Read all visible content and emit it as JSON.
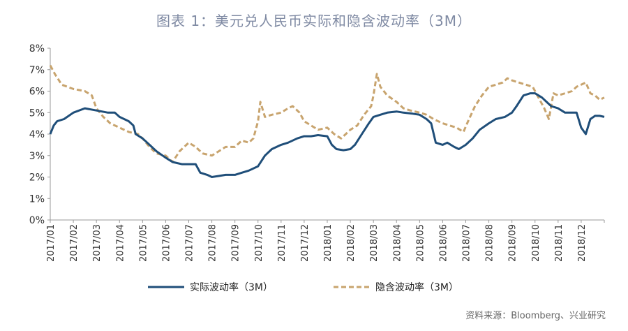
{
  "title": "图表 1：美元兑人民币实际和隐含波动率（3M）",
  "source": "资料来源：Bloomberg、兴业研究",
  "colors": {
    "actual": "#1f4e79",
    "implied": "#c8a46e",
    "axis": "#999999"
  },
  "chart_data": {
    "type": "line",
    "title": "图表 1：美元兑人民币实际和隐含波动率（3M）",
    "xlabel": "",
    "ylabel": "",
    "ylim": [
      0,
      8
    ],
    "y_ticks": [
      "0%",
      "1%",
      "2%",
      "3%",
      "4%",
      "5%",
      "6%",
      "7%",
      "8%"
    ],
    "x_categories": [
      "2017/01",
      "2017/02",
      "2017/03",
      "2017/04",
      "2017/05",
      "2017/06",
      "2017/07",
      "2017/08",
      "2017/09",
      "2017/10",
      "2017/11",
      "2017/12",
      "2018/01",
      "2018/02",
      "2018/03",
      "2018/04",
      "2018/05",
      "2018/06",
      "2018/07",
      "2018/08",
      "2018/09",
      "2018/10",
      "2018/11",
      "2018/12"
    ],
    "x_range": [
      0,
      24
    ],
    "grid": false,
    "legend": "bottom",
    "series": [
      {
        "name": "实际波动率（3M）",
        "style": "solid",
        "points": [
          [
            0,
            4.0
          ],
          [
            0.15,
            4.4
          ],
          [
            0.3,
            4.6
          ],
          [
            0.6,
            4.7
          ],
          [
            1.0,
            5.0
          ],
          [
            1.5,
            5.2
          ],
          [
            2.0,
            5.1
          ],
          [
            2.5,
            5.0
          ],
          [
            2.8,
            5.0
          ],
          [
            3.0,
            4.8
          ],
          [
            3.4,
            4.6
          ],
          [
            3.6,
            4.4
          ],
          [
            3.7,
            4.0
          ],
          [
            4.0,
            3.8
          ],
          [
            4.3,
            3.5
          ],
          [
            4.6,
            3.2
          ],
          [
            5.0,
            2.9
          ],
          [
            5.3,
            2.7
          ],
          [
            5.7,
            2.6
          ],
          [
            6.0,
            2.6
          ],
          [
            6.3,
            2.6
          ],
          [
            6.5,
            2.2
          ],
          [
            6.8,
            2.1
          ],
          [
            7.0,
            2.0
          ],
          [
            7.3,
            2.05
          ],
          [
            7.6,
            2.1
          ],
          [
            8.0,
            2.1
          ],
          [
            8.3,
            2.2
          ],
          [
            8.6,
            2.3
          ],
          [
            9.0,
            2.5
          ],
          [
            9.3,
            3.0
          ],
          [
            9.6,
            3.3
          ],
          [
            10.0,
            3.5
          ],
          [
            10.3,
            3.6
          ],
          [
            10.7,
            3.8
          ],
          [
            11.0,
            3.9
          ],
          [
            11.3,
            3.9
          ],
          [
            11.6,
            3.95
          ],
          [
            12.0,
            3.9
          ],
          [
            12.2,
            3.5
          ],
          [
            12.4,
            3.3
          ],
          [
            12.7,
            3.25
          ],
          [
            13.0,
            3.3
          ],
          [
            13.2,
            3.5
          ],
          [
            13.5,
            4.0
          ],
          [
            13.8,
            4.5
          ],
          [
            14.0,
            4.8
          ],
          [
            14.3,
            4.9
          ],
          [
            14.6,
            5.0
          ],
          [
            15.0,
            5.05
          ],
          [
            15.3,
            5.0
          ],
          [
            15.7,
            4.95
          ],
          [
            16.0,
            4.9
          ],
          [
            16.3,
            4.7
          ],
          [
            16.5,
            4.5
          ],
          [
            16.7,
            3.6
          ],
          [
            17.0,
            3.5
          ],
          [
            17.2,
            3.6
          ],
          [
            17.5,
            3.4
          ],
          [
            17.7,
            3.3
          ],
          [
            18.0,
            3.5
          ],
          [
            18.3,
            3.8
          ],
          [
            18.6,
            4.2
          ],
          [
            19.0,
            4.5
          ],
          [
            19.3,
            4.7
          ],
          [
            19.7,
            4.8
          ],
          [
            20.0,
            5.0
          ],
          [
            20.2,
            5.3
          ],
          [
            20.5,
            5.8
          ],
          [
            20.8,
            5.9
          ],
          [
            21.0,
            5.9
          ],
          [
            21.3,
            5.7
          ],
          [
            21.5,
            5.5
          ],
          [
            21.7,
            5.3
          ],
          [
            22.0,
            5.2
          ],
          [
            22.3,
            5.0
          ],
          [
            22.6,
            5.0
          ],
          [
            22.8,
            5.0
          ],
          [
            23.0,
            4.3
          ],
          [
            23.2,
            4.0
          ],
          [
            23.4,
            4.7
          ],
          [
            23.6,
            4.85
          ],
          [
            23.8,
            4.85
          ],
          [
            24.0,
            4.8
          ]
        ]
      },
      {
        "name": "隐含波动率（3M）",
        "style": "dashed",
        "points": [
          [
            0,
            7.2
          ],
          [
            0.2,
            6.8
          ],
          [
            0.5,
            6.3
          ],
          [
            1.0,
            6.1
          ],
          [
            1.5,
            6.0
          ],
          [
            1.8,
            5.8
          ],
          [
            2.0,
            5.2
          ],
          [
            2.3,
            4.8
          ],
          [
            2.6,
            4.5
          ],
          [
            3.0,
            4.3
          ],
          [
            3.4,
            4.1
          ],
          [
            3.8,
            4.0
          ],
          [
            4.0,
            3.8
          ],
          [
            4.3,
            3.4
          ],
          [
            4.6,
            3.1
          ],
          [
            5.0,
            3.0
          ],
          [
            5.3,
            2.7
          ],
          [
            5.6,
            3.2
          ],
          [
            6.0,
            3.6
          ],
          [
            6.3,
            3.4
          ],
          [
            6.6,
            3.1
          ],
          [
            7.0,
            3.0
          ],
          [
            7.3,
            3.2
          ],
          [
            7.6,
            3.4
          ],
          [
            8.0,
            3.4
          ],
          [
            8.3,
            3.7
          ],
          [
            8.6,
            3.6
          ],
          [
            8.8,
            3.8
          ],
          [
            9.0,
            4.6
          ],
          [
            9.1,
            5.5
          ],
          [
            9.3,
            4.8
          ],
          [
            9.6,
            4.9
          ],
          [
            10.0,
            5.0
          ],
          [
            10.3,
            5.2
          ],
          [
            10.5,
            5.3
          ],
          [
            10.8,
            5.0
          ],
          [
            11.0,
            4.6
          ],
          [
            11.3,
            4.4
          ],
          [
            11.6,
            4.2
          ],
          [
            12.0,
            4.3
          ],
          [
            12.3,
            4.0
          ],
          [
            12.6,
            3.8
          ],
          [
            13.0,
            4.2
          ],
          [
            13.3,
            4.4
          ],
          [
            13.6,
            4.9
          ],
          [
            13.9,
            5.3
          ],
          [
            14.0,
            5.8
          ],
          [
            14.15,
            6.8
          ],
          [
            14.3,
            6.2
          ],
          [
            14.6,
            5.8
          ],
          [
            15.0,
            5.5
          ],
          [
            15.3,
            5.2
          ],
          [
            15.6,
            5.1
          ],
          [
            16.0,
            5.0
          ],
          [
            16.3,
            4.9
          ],
          [
            16.6,
            4.7
          ],
          [
            17.0,
            4.5
          ],
          [
            17.3,
            4.4
          ],
          [
            17.6,
            4.3
          ],
          [
            17.9,
            4.1
          ],
          [
            18.1,
            4.6
          ],
          [
            18.4,
            5.3
          ],
          [
            18.7,
            5.8
          ],
          [
            19.0,
            6.2
          ],
          [
            19.3,
            6.3
          ],
          [
            19.6,
            6.4
          ],
          [
            19.8,
            6.6
          ],
          [
            20.0,
            6.5
          ],
          [
            20.3,
            6.4
          ],
          [
            20.6,
            6.3
          ],
          [
            20.9,
            6.2
          ],
          [
            21.0,
            6.0
          ],
          [
            21.2,
            5.6
          ],
          [
            21.4,
            5.2
          ],
          [
            21.6,
            4.7
          ],
          [
            21.8,
            5.9
          ],
          [
            22.0,
            5.8
          ],
          [
            22.3,
            5.9
          ],
          [
            22.6,
            6.0
          ],
          [
            22.8,
            6.2
          ],
          [
            23.0,
            6.3
          ],
          [
            23.2,
            6.4
          ],
          [
            23.4,
            5.9
          ],
          [
            23.6,
            5.8
          ],
          [
            23.8,
            5.6
          ],
          [
            24.0,
            5.7
          ]
        ]
      }
    ]
  }
}
